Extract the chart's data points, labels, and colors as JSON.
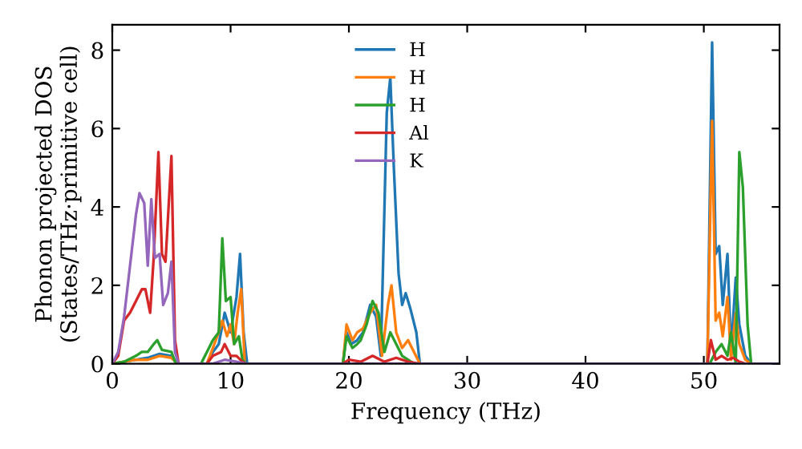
{
  "chart_data": {
    "type": "line",
    "xlabel": "Frequency (THz)",
    "ylabel": "Phonon projected DOS\n(States/THz·primitive cell)",
    "xlim": [
      0,
      56.4
    ],
    "ylim": [
      0,
      8.65
    ],
    "xticks": [
      0,
      10,
      20,
      30,
      40,
      50
    ],
    "yticks": [
      0,
      2,
      4,
      6,
      8
    ],
    "grid": false,
    "legend": "top",
    "marker": "none",
    "line_style": "solid",
    "series": [
      {
        "name": "H",
        "color": "#1f77b4",
        "x": [
          0,
          1,
          2,
          3,
          4,
          5,
          5.5,
          8,
          8.5,
          9,
          9.5,
          10,
          10.5,
          10.8,
          11.1,
          11.4,
          19.5,
          19.8,
          20.2,
          20.7,
          21.2,
          21.8,
          22.3,
          22.7,
          23.2,
          23.5,
          23.8,
          24.2,
          24.5,
          24.8,
          25.2,
          25.7,
          26,
          50.3,
          50.7,
          51,
          51.3,
          51.6,
          52,
          52.3,
          52.7,
          53,
          53.5,
          54,
          56.4
        ],
        "values": [
          0,
          0.05,
          0.1,
          0.15,
          0.25,
          0.2,
          0,
          0,
          0.3,
          0.5,
          1.3,
          0.8,
          1.7,
          2.8,
          0.8,
          0,
          0,
          0.8,
          0.5,
          0.6,
          0.8,
          1.5,
          1.2,
          0.2,
          6.4,
          7.3,
          5.0,
          2.3,
          1.5,
          1.8,
          1.4,
          0.8,
          0,
          0,
          8.2,
          2.8,
          3.0,
          1.5,
          2.8,
          0.3,
          2.2,
          1.0,
          0.2,
          0,
          0
        ]
      },
      {
        "name": "H",
        "color": "#ff7f0e",
        "x": [
          0,
          1,
          2,
          3,
          4,
          5,
          5.5,
          8,
          8.5,
          9,
          9.3,
          9.7,
          10,
          10.3,
          10.6,
          10.9,
          11.2,
          19.5,
          19.8,
          20.3,
          20.7,
          21.2,
          21.8,
          22.3,
          22.8,
          23.3,
          23.6,
          24,
          24.5,
          25,
          25.5,
          26,
          50.3,
          50.7,
          51,
          51.3,
          51.6,
          52,
          52.3,
          52.7,
          53,
          53.5,
          54,
          56.4
        ],
        "values": [
          0,
          0.05,
          0.1,
          0.1,
          0.2,
          0.15,
          0,
          0,
          0.4,
          0.8,
          1.1,
          0.7,
          1.0,
          0.5,
          1.3,
          1.9,
          0,
          0,
          1.0,
          0.6,
          0.8,
          0.9,
          1.3,
          1.5,
          0.2,
          1.5,
          2.0,
          0.8,
          0.4,
          0.6,
          0.3,
          0,
          0,
          6.2,
          1.1,
          1.3,
          0.7,
          1.7,
          0.1,
          1.3,
          0.5,
          0.1,
          0,
          0
        ]
      },
      {
        "name": "H",
        "color": "#2ca02c",
        "x": [
          0,
          1,
          2,
          2.5,
          3,
          3.5,
          3.8,
          4.2,
          5,
          5.3,
          5.6,
          7.5,
          8,
          8.5,
          9,
          9.3,
          9.6,
          10,
          10.3,
          10.7,
          11,
          11.3,
          19.5,
          19.8,
          20.3,
          20.7,
          21,
          21.5,
          22,
          22.5,
          23,
          23.5,
          24,
          24.5,
          25,
          25.5,
          50.5,
          51,
          51.5,
          52,
          52.3,
          52.7,
          53,
          53.3,
          53.7,
          54,
          56.4
        ],
        "values": [
          0,
          0.05,
          0.2,
          0.3,
          0.3,
          0.5,
          0.6,
          0.35,
          0.3,
          0.05,
          0,
          0,
          0.3,
          0.6,
          0.8,
          3.2,
          1.6,
          1.7,
          0.5,
          0.7,
          0.1,
          0,
          0,
          0.7,
          0.4,
          0.5,
          0.6,
          1.0,
          1.6,
          1.3,
          0.3,
          0.8,
          0.5,
          0.2,
          0.1,
          0,
          0,
          0.3,
          0.5,
          0.2,
          0.8,
          0,
          5.4,
          4.5,
          1.0,
          0,
          0
        ]
      },
      {
        "name": "Al",
        "color": "#d62728",
        "x": [
          0,
          0.5,
          1,
          1.5,
          2,
          2.5,
          2.8,
          3.2,
          3.5,
          3.9,
          4.2,
          4.5,
          5,
          5.3,
          5.6,
          8,
          8.5,
          9.2,
          9.5,
          10,
          10.5,
          11,
          11.3,
          19.5,
          20,
          21,
          22,
          23,
          24,
          25,
          26,
          50.3,
          50.6,
          51,
          51.5,
          52,
          52.5,
          53,
          53.5,
          56.4
        ],
        "values": [
          0,
          0.2,
          1.1,
          1.3,
          1.6,
          1.9,
          1.9,
          1.3,
          2.7,
          5.4,
          2.8,
          2.6,
          5.3,
          0.6,
          0,
          0,
          0.2,
          0.3,
          0.5,
          0.2,
          0.2,
          0.05,
          0,
          0,
          0.1,
          0.05,
          0.2,
          0.05,
          0.15,
          0.05,
          0,
          0,
          0.6,
          0.1,
          0.2,
          0.1,
          0.15,
          0.05,
          0,
          0
        ]
      },
      {
        "name": "K",
        "color": "#9467bd",
        "x": [
          0,
          0.5,
          1,
          1.5,
          2,
          2.3,
          2.7,
          3,
          3.3,
          3.6,
          4,
          4.3,
          4.7,
          5,
          5.3,
          5.6,
          8.5,
          9.5,
          10.5,
          11.3,
          56.4
        ],
        "values": [
          0,
          0.3,
          1.2,
          2.5,
          3.8,
          4.35,
          4.1,
          2.5,
          4.2,
          2.7,
          2.8,
          1.5,
          1.8,
          2.6,
          0.3,
          0,
          0,
          0.1,
          0.05,
          0,
          0
        ]
      }
    ]
  }
}
